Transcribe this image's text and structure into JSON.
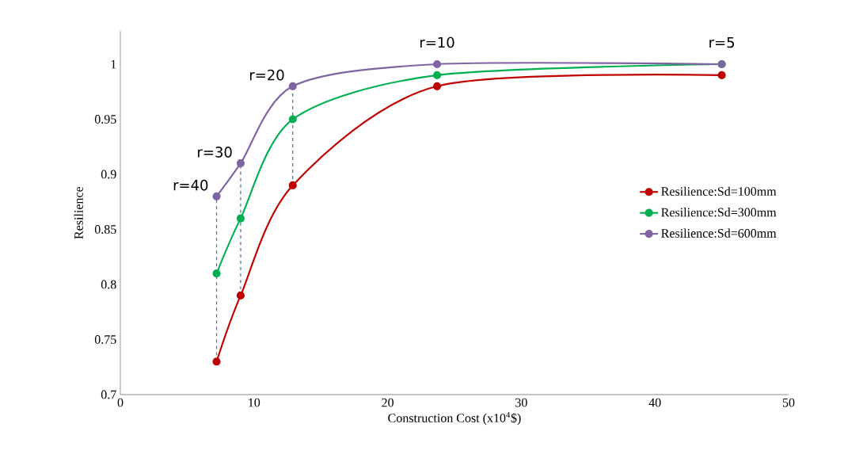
{
  "chart_data": {
    "type": "line",
    "xlabel": "Construction Cost (x10$^{4}$$)",
    "ylabel": "Resilience",
    "xlim": [
      0,
      50
    ],
    "xticks": [
      0,
      10,
      20,
      30,
      40,
      50
    ],
    "ylim": [
      0.7,
      1.03
    ],
    "yticks": [
      0.7,
      0.75,
      0.8,
      0.85,
      0.9,
      0.95,
      1
    ],
    "x": [
      7.2,
      9,
      12.9,
      23.7,
      45
    ],
    "marker": "circle",
    "legend": "right",
    "series": [
      {
        "name": "Resilience:Sd=100mm",
        "color": "#c00000",
        "values": [
          0.73,
          0.79,
          0.89,
          0.98,
          0.99
        ]
      },
      {
        "name": "Resilience:Sd=300mm",
        "color": "#00b050",
        "values": [
          0.81,
          0.86,
          0.95,
          0.99,
          1.0
        ]
      },
      {
        "name": "Resilience:Sd=600mm",
        "color": "#8064a2",
        "values": [
          0.88,
          0.91,
          0.98,
          1.0,
          1.0
        ]
      },
      {
        "type": "line",
        "line_style": "dashed",
        "marker": "none",
        "color": "#41719c",
        "x": [
          7.2,
          7.2
        ],
        "values": [
          0.73,
          0.88
        ]
      },
      {
        "type": "line",
        "line_style": "dashed",
        "marker": "none",
        "color": "#41719c",
        "x": [
          9,
          9
        ],
        "values": [
          0.79,
          0.91
        ]
      },
      {
        "type": "line",
        "line_style": "dashed",
        "marker": "none",
        "color": "#41719c",
        "x": [
          12.9,
          12.9
        ],
        "values": [
          0.89,
          0.98
        ]
      }
    ],
    "annotations": [
      {
        "text": "r=40",
        "x": 7.2,
        "y": 0.88
      },
      {
        "text": "r=30",
        "x": 9,
        "y": 0.91
      },
      {
        "text": "r=20",
        "x": 12.9,
        "y": 0.98
      },
      {
        "text": "r=10",
        "x": 23.7,
        "y": 1.0
      },
      {
        "text": "r=5",
        "x": 45,
        "y": 1.0
      }
    ]
  }
}
